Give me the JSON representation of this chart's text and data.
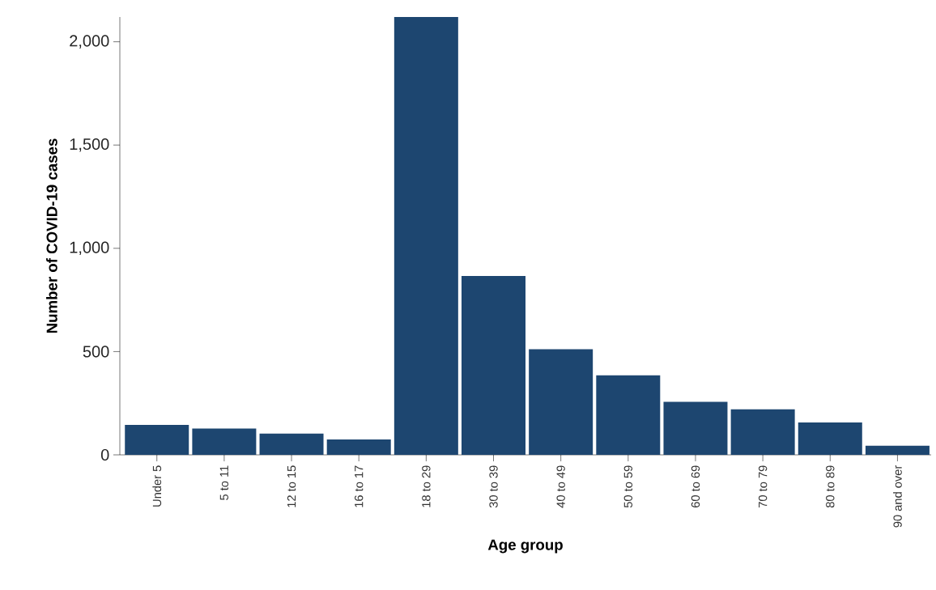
{
  "chart_data": {
    "type": "bar",
    "xlabel": "Age group",
    "ylabel": "Number of COVID-19 cases",
    "categories": [
      "Under 5",
      "5 to 11",
      "12 to 15",
      "16 to 17",
      "18 to 29",
      "30 to 39",
      "40 to 49",
      "50 to 59",
      "60 to 69",
      "70 to 79",
      "80 to 89",
      "90 and over"
    ],
    "values": [
      145,
      127,
      103,
      74,
      2120,
      866,
      511,
      385,
      257,
      220,
      157,
      44
    ],
    "color": "#1d4670",
    "ylim": [
      0,
      2120
    ],
    "yticks": [
      0,
      500,
      {
        "value": 1000,
        "label": "1,000"
      },
      {
        "value": 1500,
        "label": "1,500"
      },
      {
        "value": 2000,
        "label": "2,000"
      }
    ],
    "grid": false
  }
}
